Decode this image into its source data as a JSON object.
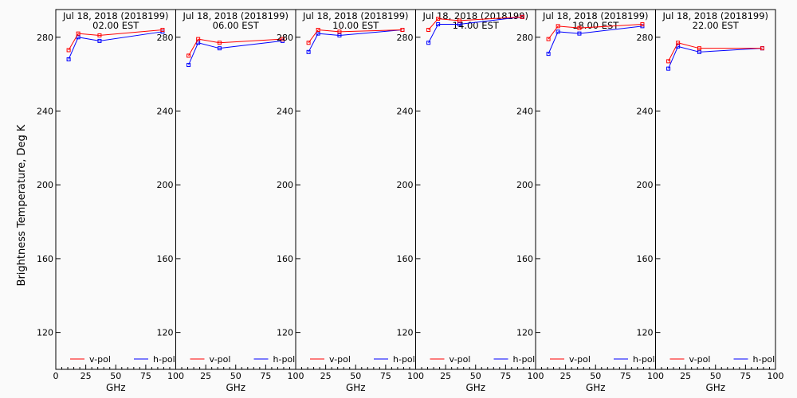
{
  "figure": {
    "ylabel": "Brightness Temperature, Deg K",
    "xlabel": "GHz"
  },
  "chart_data": {
    "type": "line",
    "xlim": [
      0,
      100
    ],
    "ylim": [
      100,
      295
    ],
    "x_ticks": [
      0,
      25,
      50,
      75,
      100
    ],
    "y_ticks": [
      120,
      160,
      200,
      240,
      280
    ],
    "legend": {
      "placement": "bottom",
      "entries": [
        "v-pol",
        "h-pol"
      ]
    },
    "series_colors": {
      "v-pol": "#ff0000",
      "h-pol": "#0000ff"
    },
    "x": [
      10.7,
      18.7,
      36.5,
      89.0
    ],
    "panels": [
      {
        "title": "Jul 18, 2018 (2018199)",
        "subtitle": "02.00 EST",
        "series": [
          {
            "name": "v-pol",
            "values": [
              273,
              282,
              281,
              284
            ]
          },
          {
            "name": "h-pol",
            "values": [
              268,
              280,
              278,
              283
            ]
          }
        ]
      },
      {
        "title": "Jul 18, 2018 (2018199)",
        "subtitle": "06.00 EST",
        "series": [
          {
            "name": "v-pol",
            "values": [
              270,
              279,
              277,
              279
            ]
          },
          {
            "name": "h-pol",
            "values": [
              265,
              277,
              274,
              278
            ]
          }
        ]
      },
      {
        "title": "Jul 18, 2018 (2018199)",
        "subtitle": "10.00 EST",
        "series": [
          {
            "name": "v-pol",
            "values": [
              277,
              284,
              283,
              284
            ]
          },
          {
            "name": "h-pol",
            "values": [
              272,
              282,
              281,
              284
            ]
          }
        ]
      },
      {
        "title": "Jul 18, 2018 (2018199)",
        "subtitle": "14.00 EST",
        "series": [
          {
            "name": "v-pol",
            "values": [
              284,
              290,
              289,
              291
            ]
          },
          {
            "name": "h-pol",
            "values": [
              277,
              287,
              287,
              291
            ]
          }
        ]
      },
      {
        "title": "Jul 18, 2018 (2018199)",
        "subtitle": "18.00 EST",
        "series": [
          {
            "name": "v-pol",
            "values": [
              279,
              286,
              285,
              287
            ]
          },
          {
            "name": "h-pol",
            "values": [
              271,
              283,
              282,
              286
            ]
          }
        ]
      },
      {
        "title": "Jul 18, 2018 (2018199)",
        "subtitle": "22.00 EST",
        "series": [
          {
            "name": "v-pol",
            "values": [
              267,
              277,
              274,
              274
            ]
          },
          {
            "name": "h-pol",
            "values": [
              263,
              275,
              272,
              274
            ]
          }
        ]
      }
    ]
  }
}
